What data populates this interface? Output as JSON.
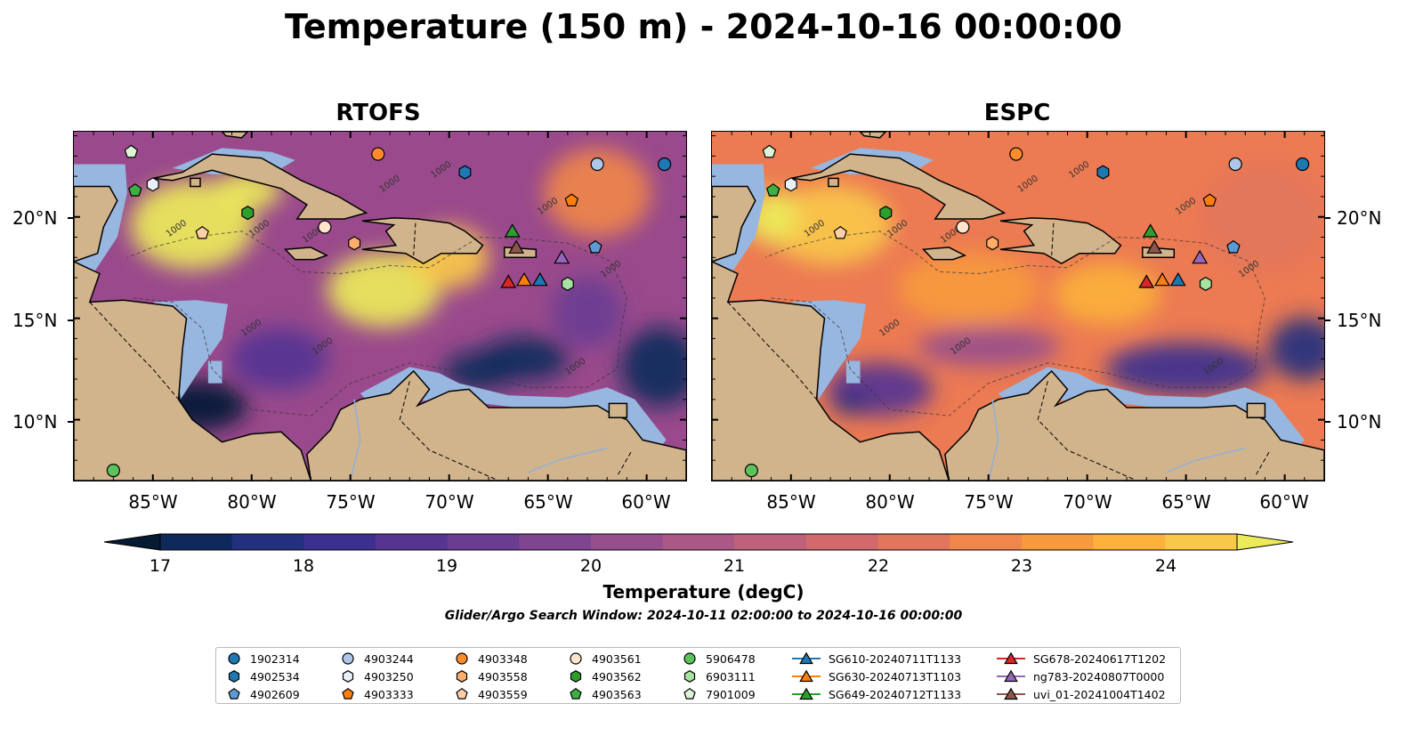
{
  "title": "Temperature (150 m) - 2024-10-16 00:00:00",
  "panels": [
    {
      "title": "RTOFS"
    },
    {
      "title": "ESPC"
    }
  ],
  "lon_ticks": [
    "85°W",
    "80°W",
    "75°W",
    "70°W",
    "65°W",
    "60°W"
  ],
  "lat_ticks": [
    "20°N",
    "15°N",
    "10°N"
  ],
  "contour_label": "1000",
  "colorbar": {
    "label": "Temperature (degC)",
    "ticks": [
      "17",
      "18",
      "19",
      "20",
      "21",
      "22",
      "23",
      "24"
    ],
    "range": [
      16.5,
      24.5
    ],
    "colors": [
      "#061a33",
      "#0e2a5c",
      "#22307f",
      "#3b2f8f",
      "#553492",
      "#6a3c92",
      "#804591",
      "#964e8d",
      "#ab5886",
      "#c0617b",
      "#d26a6d",
      "#e2765c",
      "#ef864b",
      "#f79a3e",
      "#fbb13a",
      "#f9c84a",
      "#ecea5a"
    ]
  },
  "subtitle": "Glider/Argo Search Window: 2024-10-11 02:00:00 to 2024-10-16 00:00:00",
  "legend": [
    {
      "label": "1902314",
      "marker": "circle",
      "color": "#1f77b4"
    },
    {
      "label": "4902534",
      "marker": "hexagon",
      "color": "#1f77b4"
    },
    {
      "label": "4902609",
      "marker": "pentagon",
      "color": "#5b9bd5"
    },
    {
      "label": "4903244",
      "marker": "circle",
      "color": "#aec7e8"
    },
    {
      "label": "4903250",
      "marker": "hexagon",
      "color": "#e8f1fb"
    },
    {
      "label": "4903333",
      "marker": "pentagon",
      "color": "#ff7f0e"
    },
    {
      "label": "4903348",
      "marker": "circle",
      "color": "#ff8c2a"
    },
    {
      "label": "4903558",
      "marker": "hexagon",
      "color": "#ffae6b"
    },
    {
      "label": "4903559",
      "marker": "pentagon",
      "color": "#ffd0a8"
    },
    {
      "label": "4903561",
      "marker": "circle",
      "color": "#ffe5cc"
    },
    {
      "label": "4903562",
      "marker": "hexagon",
      "color": "#2ca02c"
    },
    {
      "label": "4903563",
      "marker": "pentagon",
      "color": "#3cb043"
    },
    {
      "label": "5906478",
      "marker": "circle",
      "color": "#5cc35c"
    },
    {
      "label": "6903111",
      "marker": "hexagon",
      "color": "#a6e3a0"
    },
    {
      "label": "7901009",
      "marker": "pentagon",
      "color": "#dcf5d6"
    },
    {
      "label": "SG610-20240711T1133",
      "marker": "triangle",
      "color": "#1f77b4"
    },
    {
      "label": "SG630-20240713T1103",
      "marker": "triangle",
      "color": "#ff7f0e"
    },
    {
      "label": "SG649-20240712T1133",
      "marker": "triangle",
      "color": "#2ca02c"
    },
    {
      "label": "SG678-20240617T1202",
      "marker": "triangle",
      "color": "#d62728"
    },
    {
      "label": "ng783-20240807T0000",
      "marker": "triangle",
      "color": "#9467bd"
    },
    {
      "label": "uvi_01-20241004T1402",
      "marker": "triangle",
      "color": "#8c564b"
    }
  ],
  "map_extent": {
    "lon": [
      -89,
      -58
    ],
    "lat": [
      7,
      24.2
    ]
  },
  "observations": [
    {
      "id": "1902314",
      "lon": -59.1,
      "lat": 22.6
    },
    {
      "id": "4903244",
      "lon": -62.5,
      "lat": 22.6
    },
    {
      "id": "4902534",
      "lon": -69.2,
      "lat": 22.2
    },
    {
      "id": "4903348",
      "lon": -73.6,
      "lat": 23.1
    },
    {
      "id": "7901009",
      "lon": -86.1,
      "lat": 23.2
    },
    {
      "id": "4903250",
      "lon": -85.0,
      "lat": 21.6
    },
    {
      "id": "4903563",
      "lon": -85.9,
      "lat": 21.3
    },
    {
      "id": "4903562",
      "lon": -80.2,
      "lat": 20.2
    },
    {
      "id": "4903561",
      "lon": -76.3,
      "lat": 19.5
    },
    {
      "id": "4903559",
      "lon": -82.5,
      "lat": 19.2
    },
    {
      "id": "4903558",
      "lon": -74.8,
      "lat": 18.7
    },
    {
      "id": "4903333",
      "lon": -63.8,
      "lat": 20.8
    },
    {
      "id": "4902609",
      "lon": -62.6,
      "lat": 18.5
    },
    {
      "id": "6903111",
      "lon": -64.0,
      "lat": 16.7
    },
    {
      "id": "5906478",
      "lon": -87.0,
      "lat": 7.5
    },
    {
      "id": "SG649-20240712T1133",
      "lon": -66.8,
      "lat": 19.3
    },
    {
      "id": "uvi_01-20241004T1402",
      "lon": -66.6,
      "lat": 18.5
    },
    {
      "id": "ng783-20240807T0000",
      "lon": -64.3,
      "lat": 18.0
    },
    {
      "id": "SG678-20240617T1202",
      "lon": -67.0,
      "lat": 16.8
    },
    {
      "id": "SG630-20240713T1103",
      "lon": -66.2,
      "lat": 16.9
    },
    {
      "id": "SG610-20240711T1133",
      "lon": -65.4,
      "lat": 16.9
    }
  ]
}
